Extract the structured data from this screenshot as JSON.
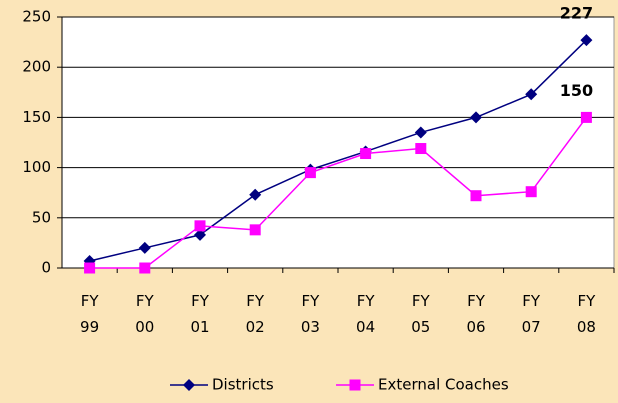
{
  "chart_data": {
    "type": "line",
    "categories": [
      "FY 99",
      "FY 00",
      "FY 01",
      "FY 02",
      "FY 03",
      "FY 04",
      "FY 05",
      "FY 06",
      "FY 07",
      "FY 08"
    ],
    "series": [
      {
        "name": "Districts",
        "color": "#000080",
        "marker": "diamond",
        "values": [
          7,
          20,
          33,
          73,
          98,
          116,
          135,
          150,
          173,
          227
        ]
      },
      {
        "name": "External Coaches",
        "color": "#ff00ff",
        "marker": "square",
        "values": [
          0,
          0,
          42,
          38,
          95,
          114,
          119,
          72,
          76,
          150
        ]
      }
    ],
    "ylim": [
      0,
      250
    ],
    "yticks": [
      0,
      50,
      100,
      150,
      200,
      250
    ],
    "grid": true,
    "legend": "bottom"
  }
}
